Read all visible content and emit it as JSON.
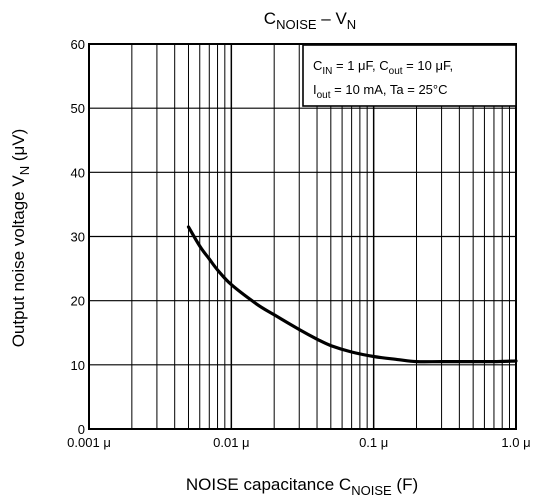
{
  "chart_data": {
    "type": "line",
    "title": {
      "main": "C",
      "sub": "NOISE",
      "sep": " – V",
      "sub2": "N"
    },
    "xlabel": {
      "main": "NOISE capacitance   C",
      "sub": "NOISE",
      "unit": "   (F)"
    },
    "ylabel": {
      "main": "Output noise voltage   V",
      "sub": "N",
      "unit": "   (μV)"
    },
    "xscale": "log",
    "xlim": [
      0.001,
      1.0
    ],
    "ylim": [
      0,
      60
    ],
    "grid": true,
    "x_tick_labels": [
      {
        "value": 0.001,
        "label": "0.001 μ"
      },
      {
        "value": 0.01,
        "label": "0.01 μ"
      },
      {
        "value": 0.1,
        "label": "0.1 μ"
      },
      {
        "value": 1.0,
        "label": "1.0 μ"
      }
    ],
    "y_ticks": [
      0,
      10,
      20,
      30,
      40,
      50,
      60
    ],
    "y_tick_labels": [
      "0",
      "10",
      "20",
      "30",
      "40",
      "50",
      "60"
    ],
    "conditions": {
      "line1": [
        {
          "t": "C"
        },
        {
          "t": "IN",
          "sub": true
        },
        {
          "t": " = 1 μF, C"
        },
        {
          "t": "out",
          "sub": true
        },
        {
          "t": " = 10 μF,"
        }
      ],
      "line2": [
        {
          "t": "I"
        },
        {
          "t": "out",
          "sub": true
        },
        {
          "t": " = 10 mA, Ta = 25°C"
        }
      ]
    },
    "series": [
      {
        "x": [
          0.005,
          0.006,
          0.007,
          0.008,
          0.01,
          0.015,
          0.02,
          0.03,
          0.04,
          0.05,
          0.07,
          0.1,
          0.15,
          0.2,
          0.3,
          0.5,
          0.7,
          1.0
        ],
        "y": [
          31.5,
          28.5,
          26.5,
          24.8,
          22.5,
          19.5,
          17.8,
          15.5,
          14.0,
          13.0,
          12.0,
          11.3,
          10.8,
          10.5,
          10.5,
          10.5,
          10.5,
          10.6
        ]
      }
    ],
    "colors": {
      "line": "#000000",
      "grid": "#000000",
      "background": "#ffffff"
    }
  }
}
